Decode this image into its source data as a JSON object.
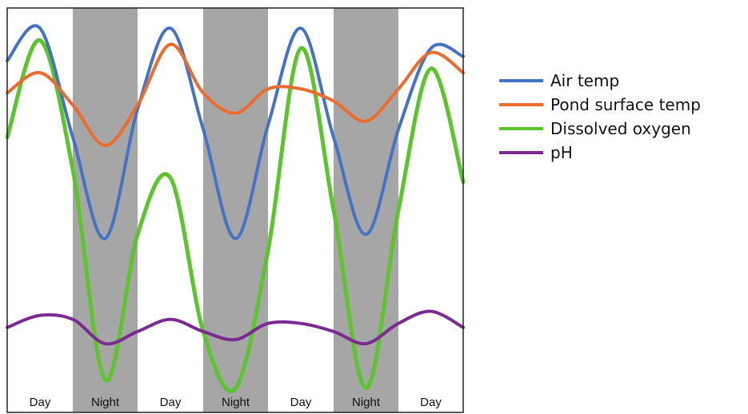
{
  "chart_data": {
    "type": "line",
    "title": "",
    "xlabel": "",
    "ylabel": "",
    "grid": false,
    "legend_position": "right",
    "shading_color": "#a6a6a6",
    "periods": [
      {
        "label": "Day",
        "shaded": false
      },
      {
        "label": "Night",
        "shaded": true
      },
      {
        "label": "Day",
        "shaded": false
      },
      {
        "label": "Night",
        "shaded": true
      },
      {
        "label": "Day",
        "shaded": false
      },
      {
        "label": "Night",
        "shaded": true
      },
      {
        "label": "Day",
        "shaded": false
      }
    ],
    "x": [
      0,
      0.5,
      1.0,
      1.5,
      2.0,
      2.5,
      3.0,
      3.5,
      4.0,
      4.5,
      5.0,
      5.5,
      6.0,
      6.5,
      7.0
    ],
    "series": [
      {
        "name": "Air temp",
        "color": "#4472c4",
        "values": [
          87,
          95,
          68,
          43,
          75,
          95,
          70,
          43,
          71,
          95,
          68,
          44,
          70,
          90,
          88
        ]
      },
      {
        "name": "Pond surface temp",
        "color": "#ed6b2d",
        "values": [
          79,
          84,
          76,
          66,
          76,
          91,
          79,
          74,
          80,
          80,
          77,
          72,
          80,
          89,
          84
        ]
      },
      {
        "name": "Dissolved oxygen",
        "color": "#5cc42c",
        "values": [
          68,
          92,
          60,
          8,
          44,
          58,
          20,
          6,
          40,
          90,
          50,
          6,
          50,
          85,
          57
        ]
      },
      {
        "name": "pH",
        "color": "#7b2a92",
        "values": [
          21,
          24,
          23,
          17,
          20,
          23,
          20,
          18,
          22,
          22,
          20,
          17,
          22,
          25,
          21
        ]
      }
    ]
  }
}
